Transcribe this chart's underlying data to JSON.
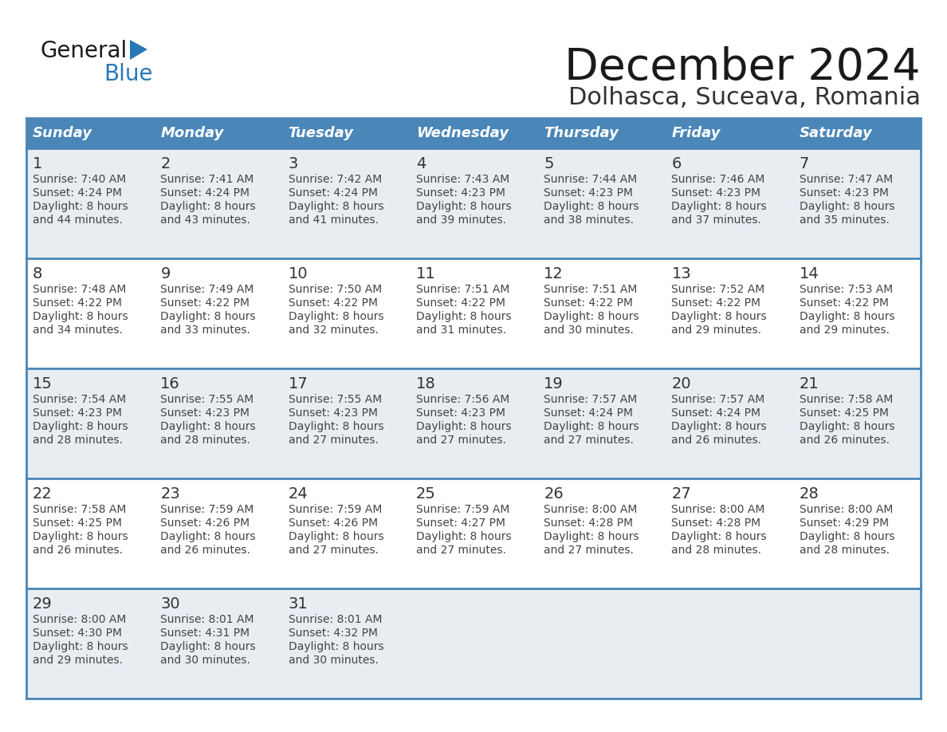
{
  "title": "December 2024",
  "subtitle": "Dolhasca, Suceava, Romania",
  "days_of_week": [
    "Sunday",
    "Monday",
    "Tuesday",
    "Wednesday",
    "Thursday",
    "Friday",
    "Saturday"
  ],
  "header_bg": "#4a86b8",
  "header_text": "#ffffff",
  "row_bg_light": "#e8edf2",
  "row_bg_white": "#ffffff",
  "row_border": "#4a86b8",
  "day_num_color": "#333333",
  "text_color": "#444444",
  "title_color": "#1a1a1a",
  "subtitle_color": "#333333",
  "logo_text_color": "#1a1a1a",
  "logo_blue_color": "#2878b8",
  "calendar": [
    [
      {
        "day": 1,
        "sunrise": "7:40 AM",
        "sunset": "4:24 PM",
        "daylight": "8 hours and 44 minutes."
      },
      {
        "day": 2,
        "sunrise": "7:41 AM",
        "sunset": "4:24 PM",
        "daylight": "8 hours and 43 minutes."
      },
      {
        "day": 3,
        "sunrise": "7:42 AM",
        "sunset": "4:24 PM",
        "daylight": "8 hours and 41 minutes."
      },
      {
        "day": 4,
        "sunrise": "7:43 AM",
        "sunset": "4:23 PM",
        "daylight": "8 hours and 39 minutes."
      },
      {
        "day": 5,
        "sunrise": "7:44 AM",
        "sunset": "4:23 PM",
        "daylight": "8 hours and 38 minutes."
      },
      {
        "day": 6,
        "sunrise": "7:46 AM",
        "sunset": "4:23 PM",
        "daylight": "8 hours and 37 minutes."
      },
      {
        "day": 7,
        "sunrise": "7:47 AM",
        "sunset": "4:23 PM",
        "daylight": "8 hours and 35 minutes."
      }
    ],
    [
      {
        "day": 8,
        "sunrise": "7:48 AM",
        "sunset": "4:22 PM",
        "daylight": "8 hours and 34 minutes."
      },
      {
        "day": 9,
        "sunrise": "7:49 AM",
        "sunset": "4:22 PM",
        "daylight": "8 hours and 33 minutes."
      },
      {
        "day": 10,
        "sunrise": "7:50 AM",
        "sunset": "4:22 PM",
        "daylight": "8 hours and 32 minutes."
      },
      {
        "day": 11,
        "sunrise": "7:51 AM",
        "sunset": "4:22 PM",
        "daylight": "8 hours and 31 minutes."
      },
      {
        "day": 12,
        "sunrise": "7:51 AM",
        "sunset": "4:22 PM",
        "daylight": "8 hours and 30 minutes."
      },
      {
        "day": 13,
        "sunrise": "7:52 AM",
        "sunset": "4:22 PM",
        "daylight": "8 hours and 29 minutes."
      },
      {
        "day": 14,
        "sunrise": "7:53 AM",
        "sunset": "4:22 PM",
        "daylight": "8 hours and 29 minutes."
      }
    ],
    [
      {
        "day": 15,
        "sunrise": "7:54 AM",
        "sunset": "4:23 PM",
        "daylight": "8 hours and 28 minutes."
      },
      {
        "day": 16,
        "sunrise": "7:55 AM",
        "sunset": "4:23 PM",
        "daylight": "8 hours and 28 minutes."
      },
      {
        "day": 17,
        "sunrise": "7:55 AM",
        "sunset": "4:23 PM",
        "daylight": "8 hours and 27 minutes."
      },
      {
        "day": 18,
        "sunrise": "7:56 AM",
        "sunset": "4:23 PM",
        "daylight": "8 hours and 27 minutes."
      },
      {
        "day": 19,
        "sunrise": "7:57 AM",
        "sunset": "4:24 PM",
        "daylight": "8 hours and 27 minutes."
      },
      {
        "day": 20,
        "sunrise": "7:57 AM",
        "sunset": "4:24 PM",
        "daylight": "8 hours and 26 minutes."
      },
      {
        "day": 21,
        "sunrise": "7:58 AM",
        "sunset": "4:25 PM",
        "daylight": "8 hours and 26 minutes."
      }
    ],
    [
      {
        "day": 22,
        "sunrise": "7:58 AM",
        "sunset": "4:25 PM",
        "daylight": "8 hours and 26 minutes."
      },
      {
        "day": 23,
        "sunrise": "7:59 AM",
        "sunset": "4:26 PM",
        "daylight": "8 hours and 26 minutes."
      },
      {
        "day": 24,
        "sunrise": "7:59 AM",
        "sunset": "4:26 PM",
        "daylight": "8 hours and 27 minutes."
      },
      {
        "day": 25,
        "sunrise": "7:59 AM",
        "sunset": "4:27 PM",
        "daylight": "8 hours and 27 minutes."
      },
      {
        "day": 26,
        "sunrise": "8:00 AM",
        "sunset": "4:28 PM",
        "daylight": "8 hours and 27 minutes."
      },
      {
        "day": 27,
        "sunrise": "8:00 AM",
        "sunset": "4:28 PM",
        "daylight": "8 hours and 28 minutes."
      },
      {
        "day": 28,
        "sunrise": "8:00 AM",
        "sunset": "4:29 PM",
        "daylight": "8 hours and 28 minutes."
      }
    ],
    [
      {
        "day": 29,
        "sunrise": "8:00 AM",
        "sunset": "4:30 PM",
        "daylight": "8 hours and 29 minutes."
      },
      {
        "day": 30,
        "sunrise": "8:01 AM",
        "sunset": "4:31 PM",
        "daylight": "8 hours and 30 minutes."
      },
      {
        "day": 31,
        "sunrise": "8:01 AM",
        "sunset": "4:32 PM",
        "daylight": "8 hours and 30 minutes."
      },
      null,
      null,
      null,
      null
    ]
  ]
}
